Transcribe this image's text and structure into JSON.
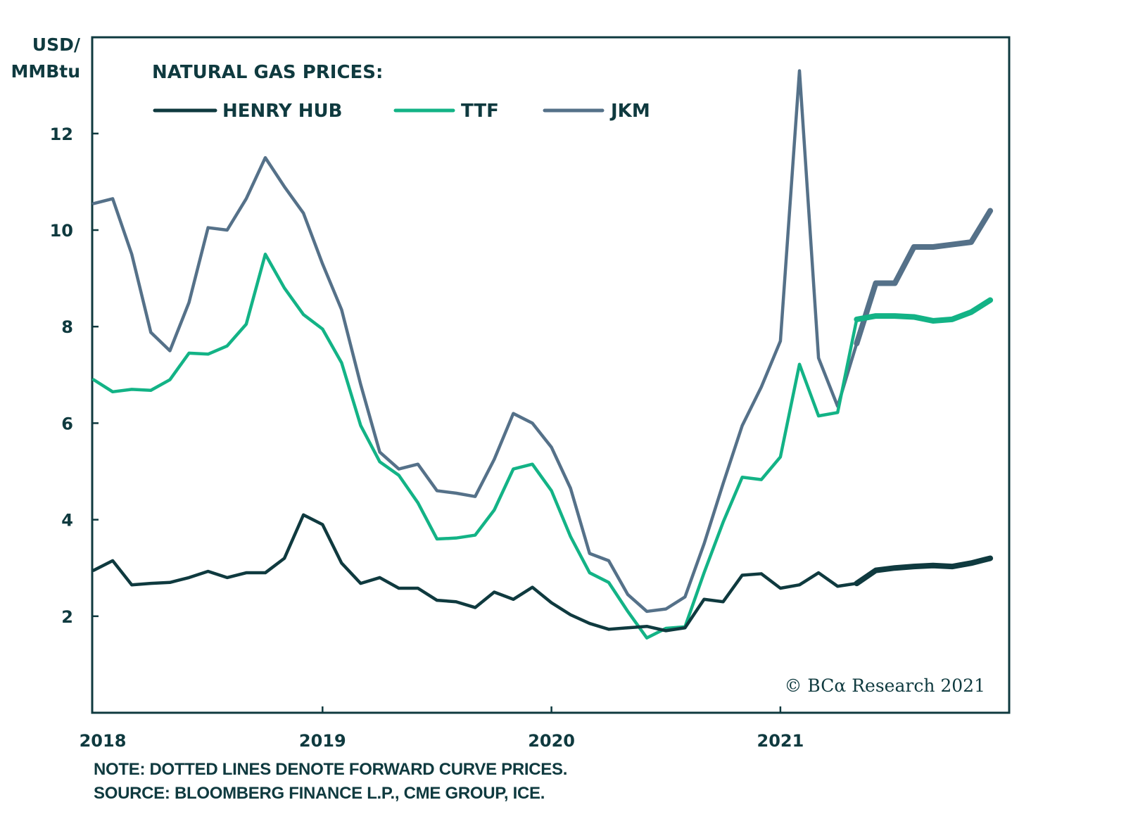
{
  "chart_data": {
    "type": "line",
    "title": "NATURAL GAS PRICES:",
    "ylabel": "USD/ MMBtu",
    "ylabel_lines": [
      "USD/",
      "MMBtu"
    ],
    "xlabel": "",
    "ylim": [
      0,
      14
    ],
    "xlim": [
      2018,
      2022
    ],
    "y_ticks": [
      2,
      4,
      6,
      8,
      10,
      12
    ],
    "x_ticks": [
      2018,
      2019,
      2020,
      2021
    ],
    "x_tick_labels": [
      "2018",
      "2019",
      "2020",
      "2021"
    ],
    "grid": false,
    "legend_position": "top-left",
    "x_frequency": "monthly",
    "x_start": "2018-01",
    "forward_curve_start_index": 40,
    "series": [
      {
        "name": "HENRY HUB",
        "color": "#0f3a3f",
        "values": [
          2.95,
          3.15,
          2.65,
          2.68,
          2.7,
          2.8,
          2.93,
          2.8,
          2.9,
          2.9,
          3.2,
          4.1,
          3.9,
          3.1,
          2.68,
          2.8,
          2.58,
          2.58,
          2.33,
          2.3,
          2.18,
          2.5,
          2.35,
          2.6,
          2.28,
          2.03,
          1.85,
          1.73,
          1.76,
          1.79,
          1.7,
          1.76,
          2.35,
          2.3,
          2.85,
          2.88,
          2.58,
          2.65,
          2.9,
          2.62,
          2.68,
          2.95,
          3.0,
          3.03,
          3.05,
          3.03,
          3.1,
          3.2
        ]
      },
      {
        "name": "TTF",
        "color": "#13b386",
        "values": [
          6.9,
          6.65,
          6.7,
          6.68,
          6.9,
          7.45,
          7.43,
          7.6,
          8.05,
          9.5,
          8.8,
          8.25,
          7.95,
          7.25,
          5.95,
          5.2,
          4.92,
          4.35,
          3.6,
          3.62,
          3.68,
          4.2,
          5.05,
          5.15,
          4.6,
          3.65,
          2.9,
          2.7,
          2.1,
          1.55,
          1.75,
          1.78,
          2.9,
          3.95,
          4.88,
          4.83,
          5.3,
          7.22,
          6.15,
          6.22,
          8.15,
          8.22,
          8.22,
          8.2,
          8.12,
          8.15,
          8.3,
          8.55
        ]
      },
      {
        "name": "JKM",
        "color": "#557189",
        "values": [
          10.55,
          10.65,
          9.5,
          7.88,
          7.5,
          8.5,
          10.05,
          10.0,
          10.65,
          11.5,
          10.9,
          10.35,
          9.3,
          8.35,
          6.8,
          5.4,
          5.05,
          5.15,
          4.6,
          4.55,
          4.48,
          5.25,
          6.2,
          6.0,
          5.5,
          4.65,
          3.3,
          3.15,
          2.45,
          2.1,
          2.15,
          2.4,
          3.5,
          4.75,
          5.95,
          6.75,
          7.7,
          13.3,
          7.35,
          6.35,
          7.65,
          8.9,
          8.9,
          9.65,
          9.65,
          9.7,
          9.75,
          10.4
        ]
      }
    ],
    "annotations": [
      "© BCα Research 2021"
    ]
  },
  "footer": {
    "note": "NOTE: DOTTED LINES DENOTE FORWARD CURVE PRICES.",
    "source": "SOURCE: BLOOMBERG FINANCE L.P., CME GROUP, ICE."
  }
}
